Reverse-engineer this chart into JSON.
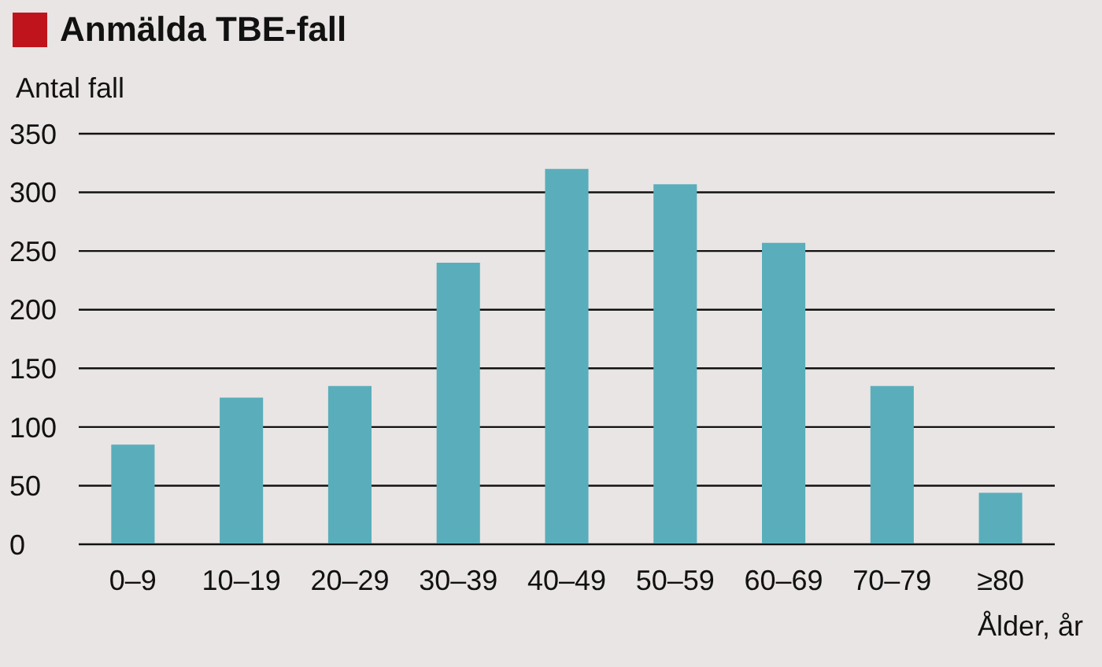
{
  "chart_data": {
    "type": "bar",
    "title": "Anmälda TBE-fall",
    "ylabel": "Antal fall",
    "xlabel": "Ålder, år",
    "categories": [
      "0–9",
      "10–19",
      "20–29",
      "30–39",
      "40–49",
      "50–59",
      "60–69",
      "70–79",
      "≥80"
    ],
    "values": [
      85,
      125,
      135,
      240,
      320,
      307,
      257,
      135,
      44
    ],
    "color": "#5aaebb",
    "ylim": [
      0,
      350
    ],
    "yticks": [
      0,
      50,
      100,
      150,
      200,
      250,
      300,
      350
    ],
    "grid": "y"
  }
}
